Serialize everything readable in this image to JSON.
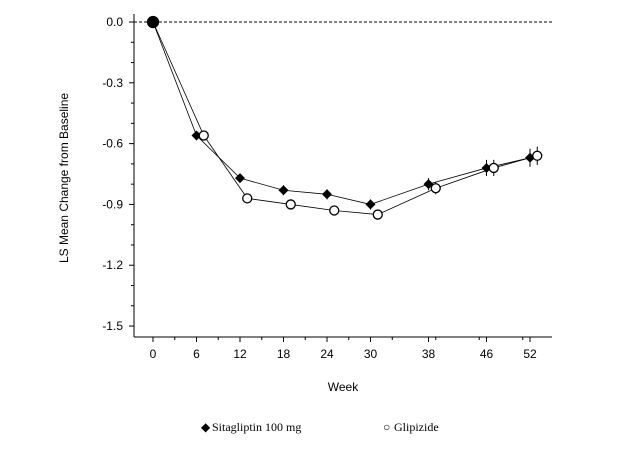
{
  "chart_data": {
    "type": "line",
    "title": "",
    "xlabel": "Week",
    "ylabel": "LS Mean Change from Baseline",
    "x_ticks": [
      0,
      6,
      12,
      18,
      24,
      30,
      38,
      46,
      52
    ],
    "y_ticks": [
      0.0,
      -0.3,
      -0.6,
      -0.9,
      -1.2,
      -1.5
    ],
    "y_tick_labels": [
      "0.0",
      "-0.3",
      "-0.6",
      "-0.9",
      "-1.2",
      "-1.5"
    ],
    "xlim": [
      -2,
      54
    ],
    "ylim": [
      -1.55,
      0.0
    ],
    "reference_line": 0.0,
    "series": [
      {
        "name": "Sitagliptin 100 mg",
        "marker": "diamond-filled",
        "x": [
          0,
          6,
          12,
          18,
          24,
          30,
          38,
          46,
          52
        ],
        "values": [
          0.0,
          -0.56,
          -0.77,
          -0.83,
          -0.85,
          -0.9,
          -0.8,
          -0.72,
          -0.67
        ],
        "error": [
          0.0,
          0.015,
          0.02,
          0.025,
          0.025,
          0.025,
          0.03,
          0.04,
          0.045
        ]
      },
      {
        "name": "Glipizide",
        "marker": "circle-open",
        "x": [
          0,
          7,
          13,
          19,
          25,
          31,
          39,
          47,
          53
        ],
        "values": [
          0.0,
          -0.56,
          -0.87,
          -0.9,
          -0.93,
          -0.95,
          -0.82,
          -0.72,
          -0.66
        ],
        "error": [
          0.0,
          0.015,
          0.02,
          0.025,
          0.025,
          0.025,
          0.03,
          0.04,
          0.045
        ]
      }
    ],
    "legend": {
      "position": "bottom-center",
      "labels": [
        "Sitagliptin 100 mg",
        "Glipizide"
      ],
      "symbols": [
        "◆",
        "○"
      ]
    }
  }
}
